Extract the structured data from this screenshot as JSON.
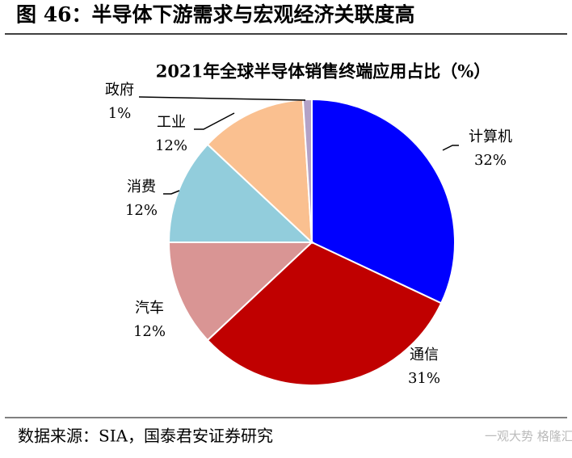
{
  "header": {
    "title": "图 46：半导体下游需求与宏观经济关联度高"
  },
  "chart_data": {
    "type": "pie",
    "title": "2021年全球半导体销售终端应用占比（%）",
    "categories": [
      "计算机",
      "通信",
      "汽车",
      "消费",
      "工业",
      "政府"
    ],
    "values": [
      32,
      31,
      12,
      12,
      12,
      1
    ],
    "value_labels": [
      "32%",
      "31%",
      "12%",
      "12%",
      "12%",
      "1%"
    ],
    "colors": [
      "#0000ff",
      "#c00000",
      "#d99594",
      "#92cddc",
      "#fac090",
      "#b3a2c7"
    ]
  },
  "footer": {
    "source": "数据来源：SIA，国泰君安证券研究",
    "watermark": "一观大势 格隆汇"
  }
}
